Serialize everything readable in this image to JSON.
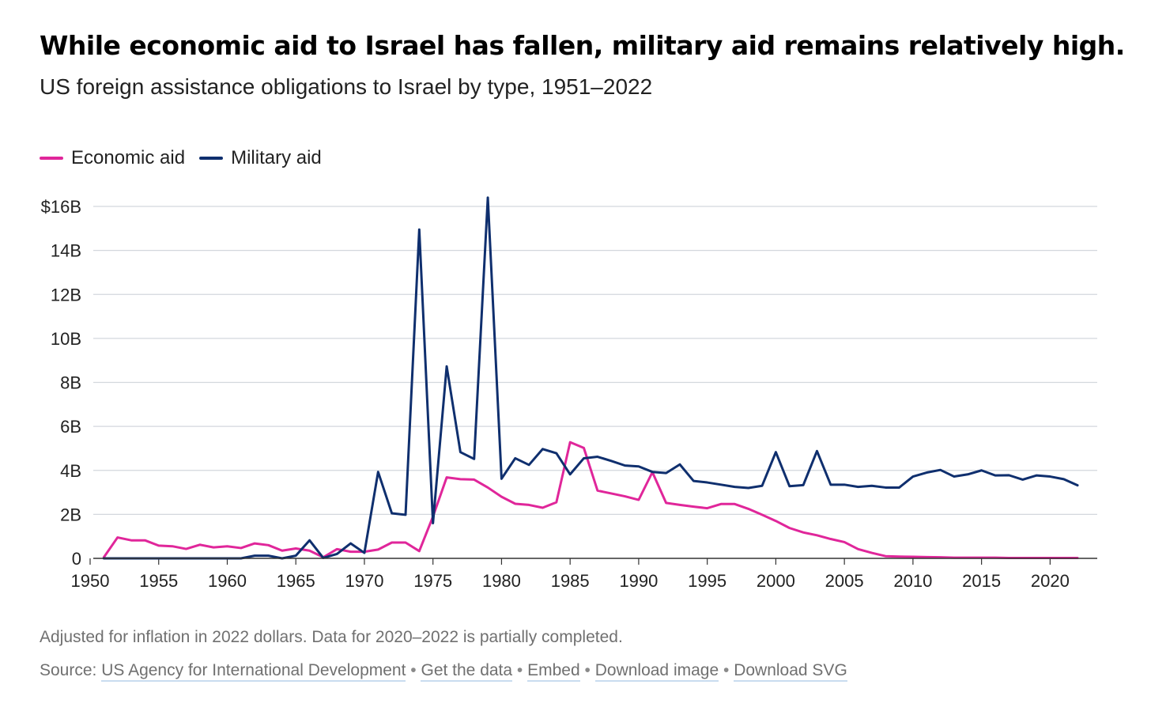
{
  "title": "While economic aid to Israel has fallen, military aid remains relatively high.",
  "subtitle": "US foreign assistance obligations to Israel by type, 1951–2022",
  "legend": {
    "economic": "Economic aid",
    "military": "Military aid"
  },
  "note": "Adjusted for inflation in 2022 dollars. Data for 2020–2022 is partially completed.",
  "source": {
    "label": "Source: ",
    "links": [
      "US Agency for International Development",
      "Get the data",
      "Embed",
      "Download image",
      "Download SVG"
    ],
    "separator": "•"
  },
  "colors": {
    "economic": "#e0269a",
    "military": "#0f2f6e",
    "grid": "#d3d7dd"
  },
  "chart_data": {
    "type": "line",
    "x": [
      1951,
      1952,
      1953,
      1954,
      1955,
      1956,
      1957,
      1958,
      1959,
      1960,
      1961,
      1962,
      1963,
      1964,
      1965,
      1966,
      1967,
      1968,
      1969,
      1970,
      1971,
      1972,
      1973,
      1974,
      1975,
      1976,
      1977,
      1978,
      1979,
      1980,
      1981,
      1982,
      1983,
      1984,
      1985,
      1986,
      1987,
      1988,
      1989,
      1990,
      1991,
      1992,
      1993,
      1994,
      1995,
      1996,
      1997,
      1998,
      1999,
      2000,
      2001,
      2002,
      2003,
      2004,
      2005,
      2006,
      2007,
      2008,
      2009,
      2010,
      2011,
      2012,
      2013,
      2014,
      2015,
      2016,
      2017,
      2018,
      2019,
      2020,
      2021,
      2022
    ],
    "series": [
      {
        "name": "Economic aid",
        "color": "#e0269a",
        "values": [
          0.05,
          0.95,
          0.82,
          0.82,
          0.58,
          0.55,
          0.43,
          0.62,
          0.5,
          0.55,
          0.47,
          0.68,
          0.6,
          0.35,
          0.45,
          0.35,
          0.05,
          0.42,
          0.3,
          0.3,
          0.4,
          0.72,
          0.72,
          0.33,
          1.9,
          3.68,
          3.6,
          3.58,
          3.22,
          2.8,
          2.48,
          2.43,
          2.3,
          2.55,
          5.28,
          5.02,
          3.08,
          2.95,
          2.82,
          2.66,
          3.92,
          2.52,
          2.43,
          2.35,
          2.28,
          2.47,
          2.47,
          2.25,
          1.98,
          1.7,
          1.38,
          1.18,
          1.05,
          0.88,
          0.74,
          0.42,
          0.25,
          0.1,
          0.08,
          0.07,
          0.06,
          0.05,
          0.03,
          0.03,
          0.03,
          0.03,
          0.02,
          0.02,
          0.02,
          0.02,
          0.02,
          0.02
        ]
      },
      {
        "name": "Military aid",
        "color": "#0f2f6e",
        "values": [
          0,
          0,
          0,
          0,
          0,
          0,
          0,
          0,
          0,
          0,
          0,
          0.12,
          0.12,
          0,
          0.12,
          0.82,
          0.02,
          0.2,
          0.68,
          0.25,
          3.93,
          2.05,
          1.98,
          14.95,
          1.6,
          8.73,
          4.83,
          4.52,
          16.4,
          3.62,
          4.55,
          4.25,
          4.97,
          4.78,
          3.82,
          4.55,
          4.62,
          4.43,
          4.22,
          4.18,
          3.93,
          3.88,
          4.27,
          3.52,
          3.45,
          3.35,
          3.25,
          3.2,
          3.3,
          4.83,
          3.28,
          3.33,
          4.88,
          3.35,
          3.35,
          3.25,
          3.3,
          3.22,
          3.22,
          3.72,
          3.9,
          4.02,
          3.72,
          3.82,
          4.0,
          3.77,
          3.78,
          3.58,
          3.77,
          3.72,
          3.6,
          3.32
        ]
      }
    ],
    "xticks": [
      1950,
      1955,
      1960,
      1965,
      1970,
      1975,
      1980,
      1985,
      1990,
      1995,
      2000,
      2005,
      2010,
      2015,
      2020
    ],
    "yticks": [
      0,
      2,
      4,
      6,
      8,
      10,
      12,
      14,
      16
    ],
    "ytick_labels": [
      "0",
      "2B",
      "4B",
      "6B",
      "8B",
      "10B",
      "12B",
      "14B",
      "$16B"
    ],
    "xlim": [
      1950,
      2022.4
    ],
    "ylim": [
      0,
      16
    ],
    "ylabel": "",
    "xlabel": "",
    "grid": "horizontal",
    "legend_position": "top-left"
  }
}
